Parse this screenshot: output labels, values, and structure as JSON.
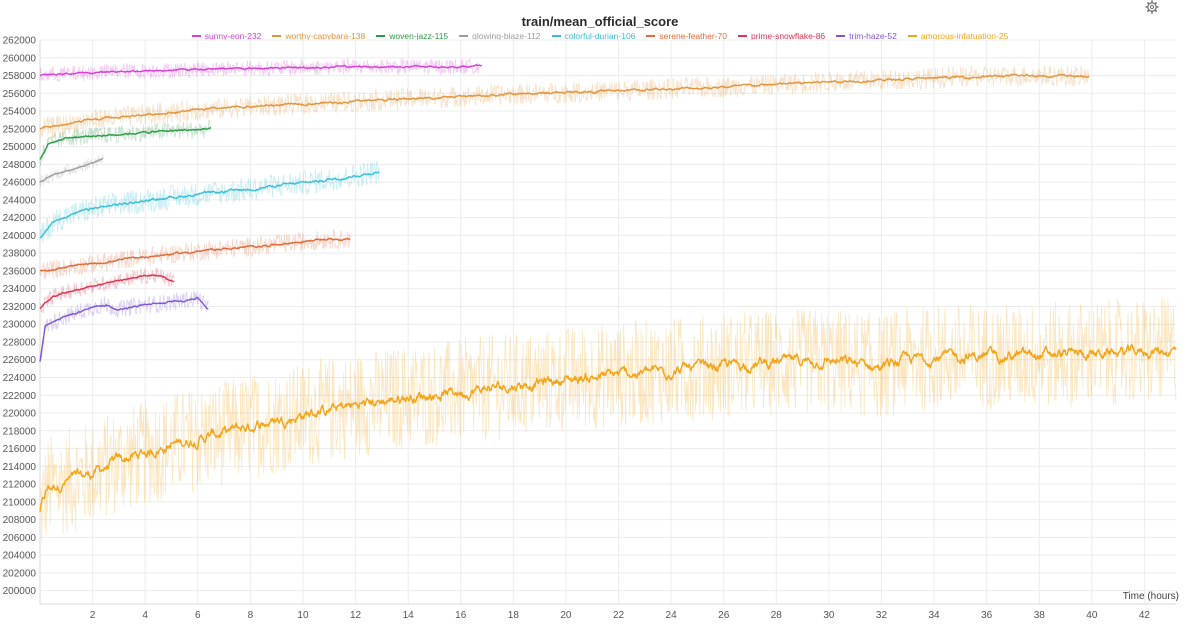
{
  "toolbar": {
    "settings_icon": "gear-icon"
  },
  "chart_data": {
    "type": "line",
    "title": "train/mean_official_score",
    "xlabel": "Time (hours)",
    "ylabel": "",
    "xlim": [
      0,
      43.2
    ],
    "ylim": [
      198500,
      262000
    ],
    "x_ticks": [
      2,
      4,
      6,
      8,
      10,
      12,
      14,
      16,
      18,
      20,
      22,
      24,
      26,
      28,
      30,
      32,
      34,
      36,
      38,
      40,
      42
    ],
    "y_ticks": [
      200000,
      202000,
      204000,
      206000,
      208000,
      210000,
      212000,
      214000,
      216000,
      218000,
      220000,
      222000,
      224000,
      226000,
      228000,
      230000,
      232000,
      234000,
      236000,
      238000,
      240000,
      242000,
      244000,
      246000,
      248000,
      250000,
      252000,
      254000,
      256000,
      258000,
      260000,
      262000
    ],
    "grid": true,
    "legend_position": "top-center",
    "series": [
      {
        "name": "sunny-eon-232",
        "color": "#d63fd6",
        "x": [
          0,
          1,
          2,
          3,
          4,
          5,
          6,
          7,
          8,
          10,
          12,
          14,
          16,
          16.8
        ],
        "y": [
          258000,
          258200,
          258300,
          258500,
          258500,
          258600,
          258700,
          258800,
          258800,
          258900,
          259000,
          259000,
          259000,
          259100
        ],
        "noise": 900
      },
      {
        "name": "worthy-capybara-138",
        "color": "#e0953e",
        "x": [
          0,
          1,
          2,
          4,
          6,
          8,
          10,
          12,
          14,
          16,
          18,
          20,
          22,
          24,
          26,
          28,
          30,
          32,
          34,
          36,
          38,
          39.9
        ],
        "y": [
          252000,
          252500,
          253000,
          253600,
          254100,
          254500,
          254800,
          255100,
          255400,
          255600,
          255900,
          256100,
          256300,
          256500,
          256700,
          257000,
          257300,
          257500,
          257700,
          257900,
          258000,
          257900
        ],
        "noise": 1200
      },
      {
        "name": "woven-jazz-115",
        "color": "#2e9a48",
        "x": [
          0,
          0.3,
          1,
          2,
          3,
          4,
          5,
          6,
          6.5
        ],
        "y": [
          248600,
          250300,
          251000,
          251200,
          251400,
          251600,
          251800,
          251900,
          252000
        ],
        "noise": 1000
      },
      {
        "name": "glowing-blaze-112",
        "color": "#9d9d9d",
        "x": [
          0,
          0.5,
          1,
          1.5,
          2,
          2.4
        ],
        "y": [
          246000,
          246800,
          247300,
          247700,
          248200,
          248700
        ],
        "noise": 700
      },
      {
        "name": "colorful-durian-106",
        "color": "#3bbfd4",
        "x": [
          0,
          0.5,
          1,
          2,
          3,
          4,
          5,
          6,
          7,
          8,
          9,
          10,
          11,
          12,
          12.9
        ],
        "y": [
          239700,
          241500,
          242200,
          243000,
          243500,
          243900,
          244300,
          244600,
          244900,
          245200,
          245600,
          245900,
          246300,
          246700,
          247200
        ],
        "noise": 1400
      },
      {
        "name": "serene-feather-70",
        "color": "#e06a3a",
        "x": [
          0,
          1,
          2,
          3,
          4,
          5,
          6,
          7,
          8,
          9,
          10,
          11,
          11.8
        ],
        "y": [
          236000,
          236400,
          236800,
          237200,
          237600,
          237900,
          238200,
          238500,
          238700,
          239000,
          239300,
          239600,
          239500
        ],
        "noise": 1100
      },
      {
        "name": "prime-snowflake-86",
        "color": "#e0314f",
        "x": [
          0,
          0.5,
          1,
          1.5,
          2,
          2.6,
          3.2,
          3.6,
          4,
          4.5,
          5.1
        ],
        "y": [
          231800,
          233200,
          233600,
          234000,
          234300,
          234700,
          235000,
          235300,
          235400,
          235500,
          234800
        ],
        "noise": 900
      },
      {
        "name": "trim-haze-52",
        "color": "#7e55d6",
        "x": [
          0,
          0.2,
          0.8,
          1.5,
          2,
          2.5,
          3,
          3.5,
          4,
          4.5,
          5,
          5.5,
          6,
          6.4
        ],
        "y": [
          225800,
          229700,
          230700,
          231400,
          231900,
          232200,
          231600,
          232000,
          232200,
          232300,
          232500,
          232700,
          233000,
          231700
        ],
        "noise": 1000
      },
      {
        "name": "amorous-infatuation-25",
        "color": "#f4a41a",
        "x": [
          0,
          0.3,
          1,
          2,
          3,
          4,
          5,
          6,
          8,
          10,
          12,
          14,
          16,
          18,
          20,
          22,
          24,
          26,
          28,
          30,
          32,
          33,
          34,
          36,
          38,
          40,
          42,
          43.2
        ],
        "y": [
          209000,
          211500,
          212300,
          213200,
          214600,
          215500,
          216400,
          217100,
          218500,
          219800,
          220900,
          221800,
          222400,
          223100,
          223800,
          224300,
          224800,
          225300,
          225700,
          225900,
          225200,
          226000,
          226300,
          226400,
          226500,
          226700,
          226900,
          227100
        ],
        "noise": 6000
      }
    ]
  }
}
